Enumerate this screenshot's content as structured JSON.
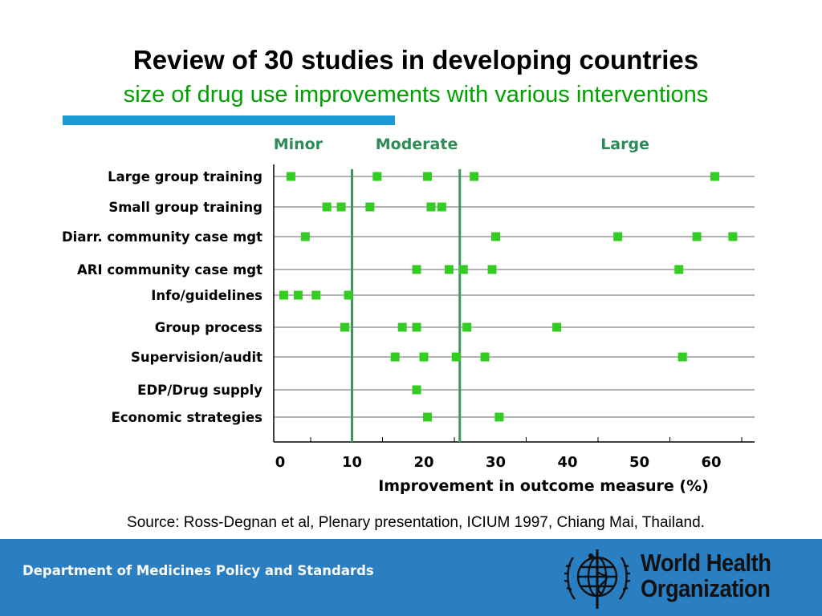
{
  "slide": {
    "title": "Review of 30 studies in developing countries",
    "subtitle": "size of drug use improvements with various interventions",
    "source": "Source: Ross-Degnan et al, Plenary presentation, ICIUM 1997, Chiang Mai, Thailand."
  },
  "footer": {
    "department": "Department of Medicines Policy and Standards",
    "org_line1": "World Health",
    "org_line2": "Organization"
  },
  "colors": {
    "title": "#000000",
    "subtitle": "#00a000",
    "accent_bar": "#1b9ad6",
    "footer_bg": "#2a7ec2",
    "marker": "#33cc22",
    "threshold_line": "#3a9a5e",
    "band_label": "#2e8b57"
  },
  "chart_data": {
    "type": "scatter",
    "xlabel": "Improvement in outcome measure (%)",
    "xlim": [
      0,
      66
    ],
    "xticks": [
      0,
      10,
      20,
      30,
      40,
      50,
      60
    ],
    "grid": "horizontal row lines",
    "thresholds": [
      10,
      25
    ],
    "bands": [
      {
        "label": "Minor",
        "center": 2.5
      },
      {
        "label": "Moderate",
        "center": 19
      },
      {
        "label": "Large",
        "center": 48
      }
    ],
    "categories": [
      "Large group training",
      "Small group training",
      "Diarr. community case mgt",
      "ARI community case mgt",
      "Info/guidelines",
      "Group process",
      "Supervision/audit",
      "EDP/Drug supply",
      "Economic strategies"
    ],
    "series": [
      {
        "values": [
          1.5,
          13.5,
          20.5,
          27,
          60.5
        ]
      },
      {
        "values": [
          6.5,
          8.5,
          12.5,
          21,
          22.5
        ]
      },
      {
        "values": [
          3.5,
          30,
          47,
          58,
          63
        ]
      },
      {
        "values": [
          19,
          23.5,
          25.5,
          29.5,
          55.5
        ]
      },
      {
        "values": [
          0.5,
          2.5,
          5,
          9.5
        ]
      },
      {
        "values": [
          9,
          17,
          19,
          26,
          38.5
        ]
      },
      {
        "values": [
          16,
          20,
          24.5,
          28.5,
          56
        ]
      },
      {
        "values": [
          19
        ]
      },
      {
        "values": [
          20.5,
          30.5
        ]
      }
    ]
  }
}
